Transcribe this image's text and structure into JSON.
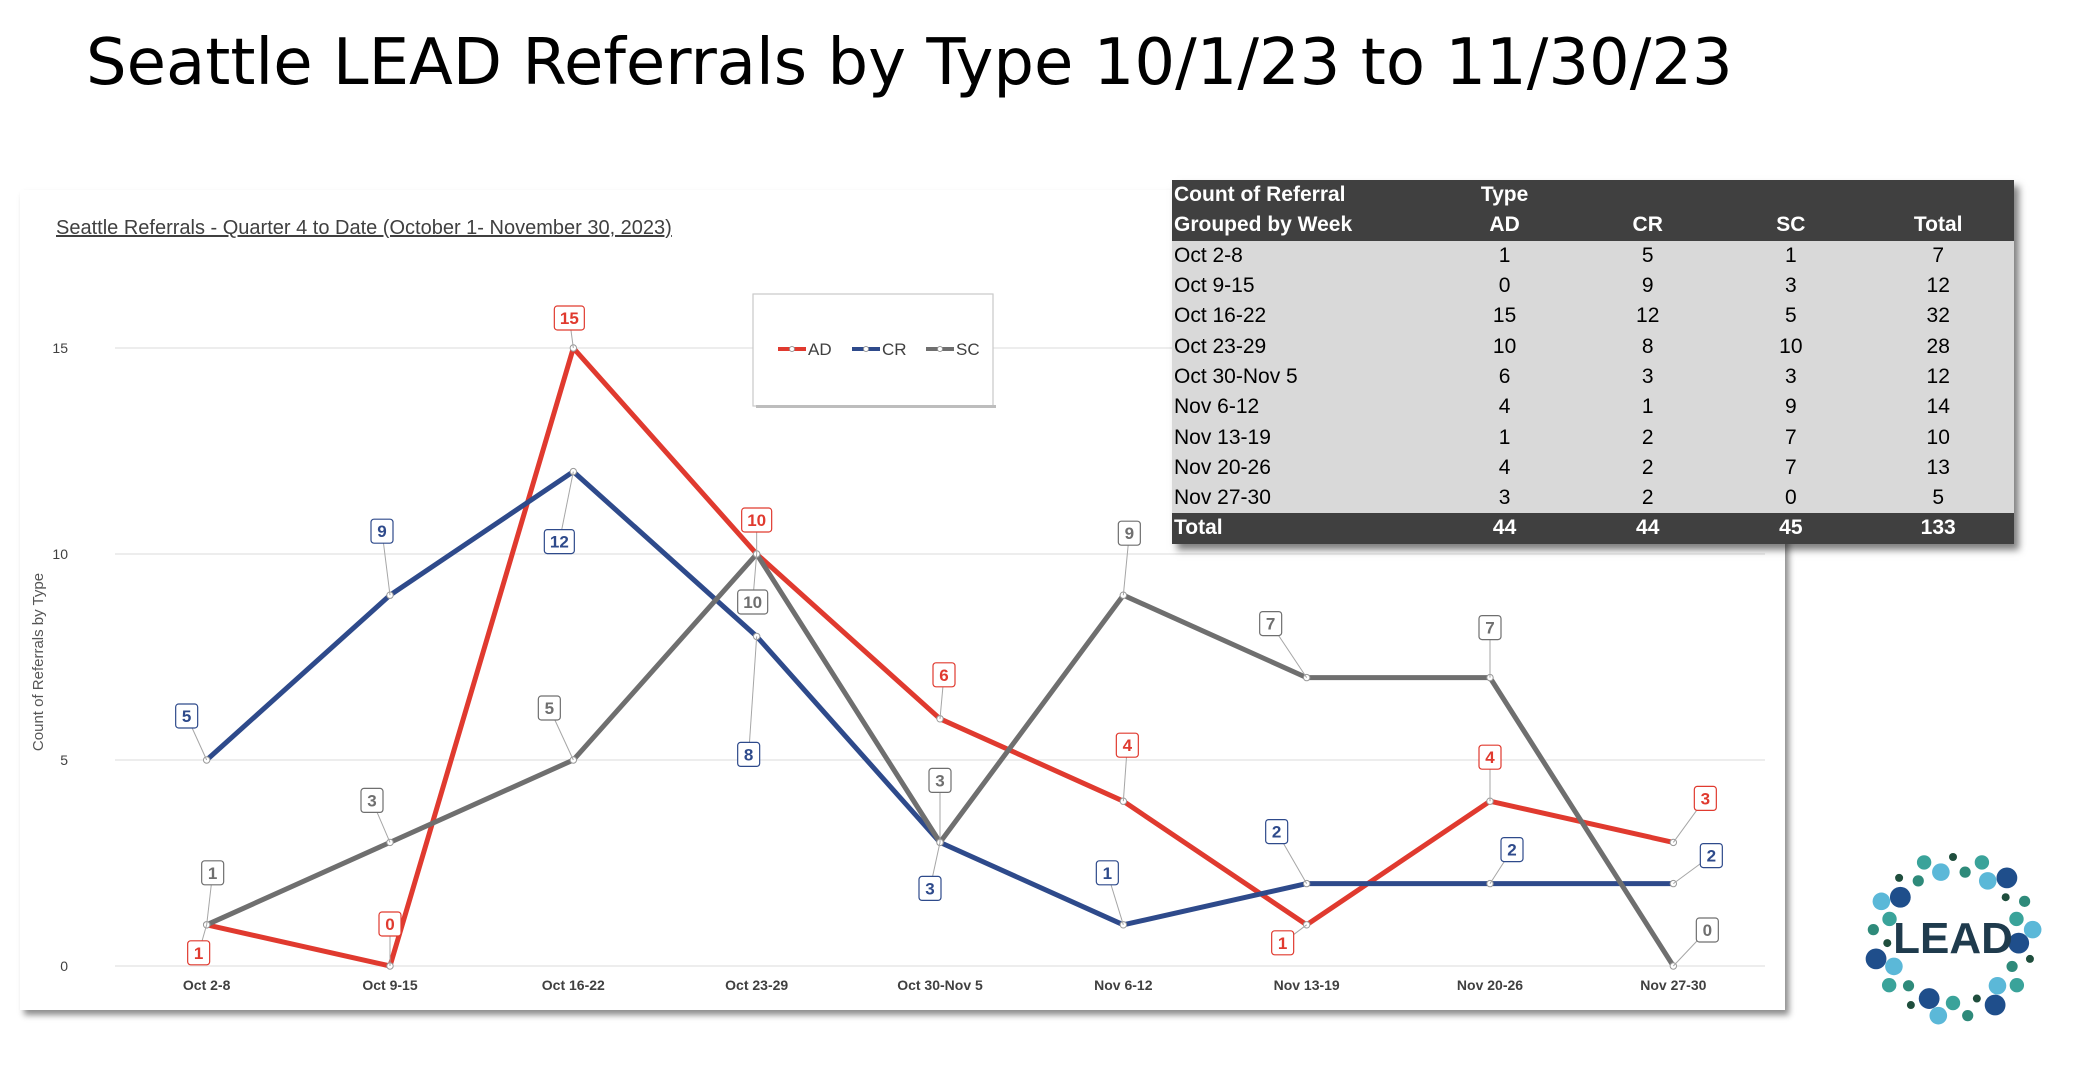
{
  "slide": {
    "title": "Seattle LEAD Referrals by Type 10/1/23 to 11/30/23"
  },
  "chart_data": {
    "type": "line",
    "title": "Seattle Referrals - Quarter 4 to Date (October 1- November 30, 2023)",
    "xlabel": "",
    "ylabel": "Count of Referrals by Type",
    "categories": [
      "Oct 2-8",
      "Oct 9-15",
      "Oct 16-22",
      "Oct 23-29",
      "Oct 30-Nov 5",
      "Nov 6-12",
      "Nov 13-19",
      "Nov 20-26",
      "Nov 27-30"
    ],
    "series": [
      {
        "name": "AD",
        "color": "#e03a2f",
        "values": [
          1,
          0,
          15,
          10,
          6,
          4,
          1,
          4,
          3
        ]
      },
      {
        "name": "CR",
        "color": "#2e4a8b",
        "values": [
          5,
          9,
          12,
          8,
          3,
          1,
          2,
          2,
          2
        ]
      },
      {
        "name": "SC",
        "color": "#6f6f6f",
        "values": [
          1,
          3,
          5,
          10,
          3,
          9,
          7,
          7,
          0
        ]
      }
    ],
    "ylim": [
      0,
      15
    ],
    "yticks": [
      0,
      5,
      10,
      15
    ],
    "grid": true,
    "legend": "top-center"
  },
  "table": {
    "header_row1": [
      "Count of Referral",
      "Type",
      "",
      "",
      ""
    ],
    "header_row2": [
      "Grouped by Week",
      "AD",
      "CR",
      "SC",
      "Total"
    ],
    "rows": [
      [
        "Oct 2-8",
        "1",
        "5",
        "1",
        "7"
      ],
      [
        "Oct 9-15",
        "0",
        "9",
        "3",
        "12"
      ],
      [
        "Oct 16-22",
        "15",
        "12",
        "5",
        "32"
      ],
      [
        "Oct 23-29",
        "10",
        "8",
        "10",
        "28"
      ],
      [
        "Oct 30-Nov 5",
        "6",
        "3",
        "3",
        "12"
      ],
      [
        "Nov 6-12",
        "4",
        "1",
        "9",
        "14"
      ],
      [
        "Nov 13-19",
        "1",
        "2",
        "7",
        "10"
      ],
      [
        "Nov 20-26",
        "4",
        "2",
        "7",
        "13"
      ],
      [
        "Nov 27-30",
        "3",
        "2",
        "0",
        "5"
      ]
    ],
    "total_row": [
      "Total",
      "44",
      "44",
      "45",
      "133"
    ]
  },
  "logo": {
    "text": "LEAD",
    "colors": [
      "#1f4e3d",
      "#2e8a7a",
      "#3aa39a",
      "#5bb8d8",
      "#1f4e8b"
    ]
  }
}
